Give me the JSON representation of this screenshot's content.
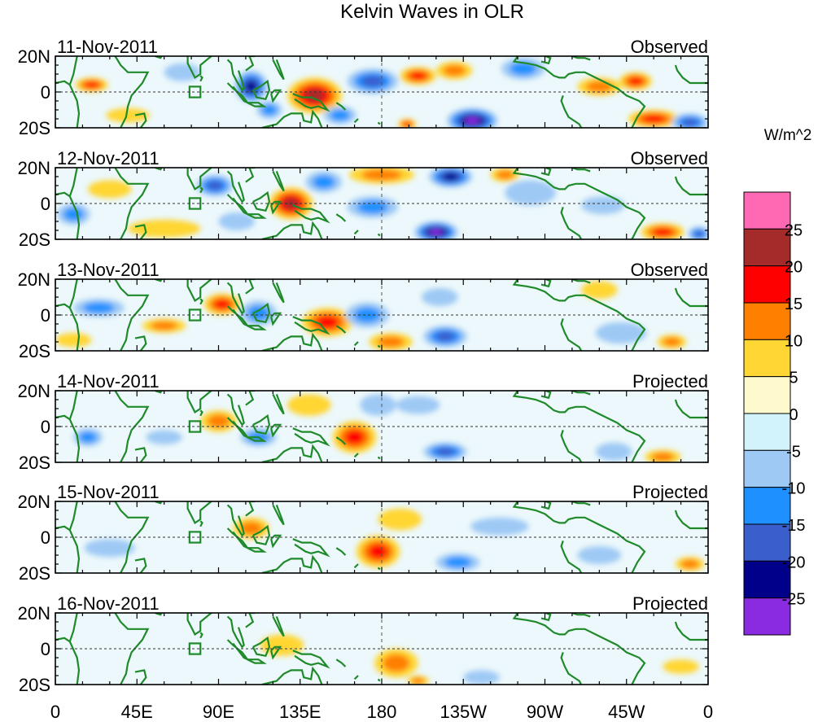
{
  "chart_data": {
    "type": "heatmap",
    "title": "Kelvin Waves in OLR",
    "units_label": "W/m^2",
    "x_ticks": [
      {
        "lon": 0,
        "label": "0"
      },
      {
        "lon": 45,
        "label": "45E"
      },
      {
        "lon": 90,
        "label": "90E"
      },
      {
        "lon": 135,
        "label": "135E"
      },
      {
        "lon": 180,
        "label": "180"
      },
      {
        "lon": 225,
        "label": "135W"
      },
      {
        "lon": 270,
        "label": "90W"
      },
      {
        "lon": 315,
        "label": "45W"
      },
      {
        "lon": 360,
        "label": "0"
      }
    ],
    "xlim": [
      0,
      360
    ],
    "y_ticks": [
      {
        "lat": 20,
        "label": "20N"
      },
      {
        "lat": 0,
        "label": "0"
      },
      {
        "lat": -20,
        "label": "20S"
      }
    ],
    "ylim": [
      -20,
      20
    ],
    "colorbar": {
      "levels": [
        -30,
        -25,
        -20,
        -15,
        -10,
        -5,
        0,
        5,
        10,
        15,
        20,
        25,
        30
      ],
      "labels": [
        "25",
        "20",
        "15",
        "10",
        "5",
        "0",
        "-5",
        "-10",
        "-15",
        "-20",
        "-25"
      ],
      "colors": [
        "#8a2be2",
        "#00008b",
        "#3a5fcd",
        "#1e90ff",
        "#9ec9f5",
        "#d2f3fb",
        "#fffacd",
        "#ffd633",
        "#ff7f00",
        "#ff0000",
        "#a52a2a",
        "#ff69b4"
      ]
    },
    "panels": [
      {
        "date": "11-Nov-2011",
        "type": "Observed",
        "anomalies": [
          {
            "lon": 20,
            "lat": 4,
            "rx": 9,
            "ry": 4,
            "v": 16
          },
          {
            "lon": 40,
            "lat": -13,
            "rx": 12,
            "ry": 4,
            "v": 6
          },
          {
            "lon": 70,
            "lat": 11,
            "rx": 10,
            "ry": 5,
            "v": -6
          },
          {
            "lon": 108,
            "lat": 3,
            "rx": 9,
            "ry": 9,
            "v": -20
          },
          {
            "lon": 118,
            "lat": -10,
            "rx": 7,
            "ry": 5,
            "v": -12
          },
          {
            "lon": 143,
            "lat": -2,
            "rx": 15,
            "ry": 10,
            "v": 22
          },
          {
            "lon": 175,
            "lat": 6,
            "rx": 14,
            "ry": 7,
            "v": -17
          },
          {
            "lon": 157,
            "lat": -13,
            "rx": 9,
            "ry": 5,
            "v": -10
          },
          {
            "lon": 200,
            "lat": 9,
            "rx": 10,
            "ry": 5,
            "v": 15
          },
          {
            "lon": 220,
            "lat": 12,
            "rx": 10,
            "ry": 5,
            "v": 14
          },
          {
            "lon": 230,
            "lat": -16,
            "rx": 14,
            "ry": 7,
            "v": -27
          },
          {
            "lon": 194,
            "lat": -18,
            "rx": 5,
            "ry": 3,
            "v": 18
          },
          {
            "lon": 258,
            "lat": 13,
            "rx": 12,
            "ry": 6,
            "v": -12
          },
          {
            "lon": 300,
            "lat": 3,
            "rx": 12,
            "ry": 5,
            "v": 12
          },
          {
            "lon": 320,
            "lat": 6,
            "rx": 9,
            "ry": 5,
            "v": 16
          },
          {
            "lon": 330,
            "lat": -15,
            "rx": 14,
            "ry": 5,
            "v": 15
          },
          {
            "lon": 350,
            "lat": -17,
            "rx": 10,
            "ry": 5,
            "v": -18
          },
          {
            "lon": 95,
            "lat": -12,
            "rx": 20,
            "ry": 5,
            "v": 4
          },
          {
            "lon": 250,
            "lat": 1,
            "rx": 30,
            "ry": 6,
            "v": 3
          },
          {
            "lon": 60,
            "lat": 1,
            "rx": 14,
            "ry": 5,
            "v": -4
          }
        ]
      },
      {
        "date": "12-Nov-2011",
        "type": "Observed",
        "anomalies": [
          {
            "lon": 10,
            "lat": -6,
            "rx": 9,
            "ry": 6,
            "v": -12
          },
          {
            "lon": 30,
            "lat": 8,
            "rx": 12,
            "ry": 5,
            "v": 6
          },
          {
            "lon": 88,
            "lat": 10,
            "rx": 10,
            "ry": 6,
            "v": -16
          },
          {
            "lon": 100,
            "lat": -10,
            "rx": 10,
            "ry": 5,
            "v": -9
          },
          {
            "lon": 130,
            "lat": 0,
            "rx": 12,
            "ry": 9,
            "v": 22
          },
          {
            "lon": 148,
            "lat": 12,
            "rx": 10,
            "ry": 6,
            "v": -11
          },
          {
            "lon": 175,
            "lat": -2,
            "rx": 14,
            "ry": 6,
            "v": -13
          },
          {
            "lon": 180,
            "lat": 16,
            "rx": 18,
            "ry": 5,
            "v": 10
          },
          {
            "lon": 218,
            "lat": 15,
            "rx": 12,
            "ry": 6,
            "v": -20
          },
          {
            "lon": 210,
            "lat": -16,
            "rx": 12,
            "ry": 6,
            "v": -26
          },
          {
            "lon": 248,
            "lat": 16,
            "rx": 8,
            "ry": 4,
            "v": 14
          },
          {
            "lon": 262,
            "lat": 6,
            "rx": 14,
            "ry": 7,
            "v": -8
          },
          {
            "lon": 302,
            "lat": -1,
            "rx": 12,
            "ry": 5,
            "v": -8
          },
          {
            "lon": 335,
            "lat": -16,
            "rx": 12,
            "ry": 5,
            "v": 18
          },
          {
            "lon": 355,
            "lat": -17,
            "rx": 6,
            "ry": 4,
            "v": -18
          },
          {
            "lon": 60,
            "lat": -14,
            "rx": 20,
            "ry": 5,
            "v": 5
          },
          {
            "lon": 240,
            "lat": -4,
            "rx": 30,
            "ry": 5,
            "v": 3
          }
        ]
      },
      {
        "date": "13-Nov-2011",
        "type": "Observed",
        "anomalies": [
          {
            "lon": 24,
            "lat": 4,
            "rx": 14,
            "ry": 5,
            "v": -10
          },
          {
            "lon": 10,
            "lat": -14,
            "rx": 10,
            "ry": 4,
            "v": 8
          },
          {
            "lon": 60,
            "lat": -6,
            "rx": 12,
            "ry": 4,
            "v": 10
          },
          {
            "lon": 92,
            "lat": 6,
            "rx": 10,
            "ry": 6,
            "v": 16
          },
          {
            "lon": 112,
            "lat": 1,
            "rx": 10,
            "ry": 7,
            "v": -13
          },
          {
            "lon": 150,
            "lat": -4,
            "rx": 14,
            "ry": 8,
            "v": 16
          },
          {
            "lon": 172,
            "lat": 0,
            "rx": 12,
            "ry": 7,
            "v": -13
          },
          {
            "lon": 185,
            "lat": -15,
            "rx": 12,
            "ry": 5,
            "v": 12
          },
          {
            "lon": 212,
            "lat": 10,
            "rx": 10,
            "ry": 5,
            "v": -8
          },
          {
            "lon": 215,
            "lat": -12,
            "rx": 12,
            "ry": 6,
            "v": -16
          },
          {
            "lon": 300,
            "lat": 14,
            "rx": 10,
            "ry": 5,
            "v": 8
          },
          {
            "lon": 312,
            "lat": -10,
            "rx": 14,
            "ry": 6,
            "v": -9
          },
          {
            "lon": 340,
            "lat": -15,
            "rx": 8,
            "ry": 4,
            "v": 14
          },
          {
            "lon": 140,
            "lat": 16,
            "rx": 20,
            "ry": 5,
            "v": 4
          },
          {
            "lon": 250,
            "lat": 4,
            "rx": 30,
            "ry": 5,
            "v": -4
          }
        ]
      },
      {
        "date": "14-Nov-2011",
        "type": "Projected",
        "anomalies": [
          {
            "lon": 18,
            "lat": -6,
            "rx": 8,
            "ry": 5,
            "v": -10
          },
          {
            "lon": 60,
            "lat": -6,
            "rx": 10,
            "ry": 4,
            "v": -9
          },
          {
            "lon": 90,
            "lat": 3,
            "rx": 10,
            "ry": 6,
            "v": 11
          },
          {
            "lon": 112,
            "lat": -6,
            "rx": 10,
            "ry": 5,
            "v": -10
          },
          {
            "lon": 165,
            "lat": -6,
            "rx": 12,
            "ry": 9,
            "v": 16
          },
          {
            "lon": 140,
            "lat": 12,
            "rx": 12,
            "ry": 6,
            "v": 7
          },
          {
            "lon": 178,
            "lat": 12,
            "rx": 10,
            "ry": 6,
            "v": -7
          },
          {
            "lon": 215,
            "lat": -14,
            "rx": 12,
            "ry": 5,
            "v": -15
          },
          {
            "lon": 200,
            "lat": 12,
            "rx": 12,
            "ry": 5,
            "v": -7
          },
          {
            "lon": 308,
            "lat": -14,
            "rx": 10,
            "ry": 5,
            "v": -8
          },
          {
            "lon": 335,
            "lat": -17,
            "rx": 10,
            "ry": 4,
            "v": 12
          },
          {
            "lon": 250,
            "lat": 2,
            "rx": 30,
            "ry": 5,
            "v": 3
          }
        ]
      },
      {
        "date": "15-Nov-2011",
        "type": "Projected",
        "anomalies": [
          {
            "lon": 30,
            "lat": -6,
            "rx": 14,
            "ry": 5,
            "v": -5
          },
          {
            "lon": 108,
            "lat": 5,
            "rx": 10,
            "ry": 6,
            "v": 11
          },
          {
            "lon": 178,
            "lat": -8,
            "rx": 12,
            "ry": 9,
            "v": 16
          },
          {
            "lon": 190,
            "lat": 10,
            "rx": 12,
            "ry": 6,
            "v": 6
          },
          {
            "lon": 222,
            "lat": -14,
            "rx": 12,
            "ry": 5,
            "v": -13
          },
          {
            "lon": 245,
            "lat": 6,
            "rx": 16,
            "ry": 5,
            "v": -5
          },
          {
            "lon": 300,
            "lat": -10,
            "rx": 12,
            "ry": 5,
            "v": -6
          },
          {
            "lon": 350,
            "lat": -15,
            "rx": 8,
            "ry": 4,
            "v": 12
          },
          {
            "lon": 70,
            "lat": 10,
            "rx": 16,
            "ry": 5,
            "v": 3
          }
        ]
      },
      {
        "date": "16-Nov-2011",
        "type": "Projected",
        "anomalies": [
          {
            "lon": 125,
            "lat": 2,
            "rx": 12,
            "ry": 6,
            "v": 6
          },
          {
            "lon": 188,
            "lat": -8,
            "rx": 12,
            "ry": 8,
            "v": 11
          },
          {
            "lon": 215,
            "lat": 10,
            "rx": 14,
            "ry": 5,
            "v": 4
          },
          {
            "lon": 235,
            "lat": -16,
            "rx": 10,
            "ry": 4,
            "v": -9
          },
          {
            "lon": 200,
            "lat": -18,
            "rx": 6,
            "ry": 3,
            "v": 12
          },
          {
            "lon": 40,
            "lat": -6,
            "rx": 16,
            "ry": 5,
            "v": -4
          },
          {
            "lon": 300,
            "lat": 6,
            "rx": 18,
            "ry": 5,
            "v": -4
          },
          {
            "lon": 345,
            "lat": -10,
            "rx": 10,
            "ry": 4,
            "v": 6
          }
        ]
      }
    ]
  }
}
